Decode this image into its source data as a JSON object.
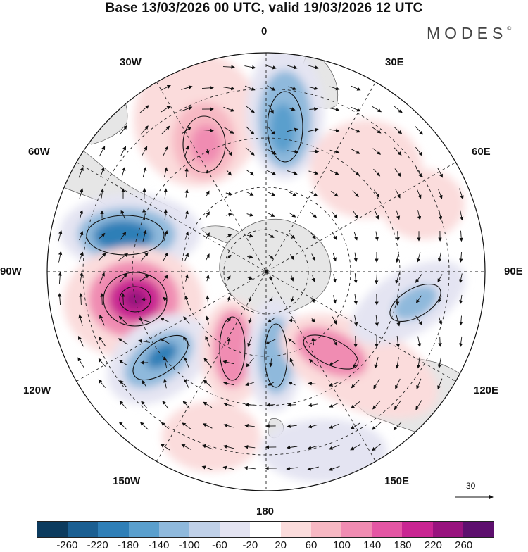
{
  "title": "Base 13/03/2026 00 UTC, valid 19/03/2026 12 UTC",
  "logo": {
    "text": "MODES",
    "mark": "©"
  },
  "map": {
    "projection": "south-polar-stereographic",
    "longitude_labels": {
      "0": "0",
      "30E": "30E",
      "60E": "60E",
      "90E": "90E",
      "120E": "120E",
      "150E": "150E",
      "180": "180",
      "150W": "150W",
      "120W": "120W",
      "90W": "90W",
      "60W": "60W",
      "30W": "30W"
    },
    "reference_vector": {
      "label": "30",
      "icon": "arrow-right-icon"
    },
    "anomaly_centers": [
      {
        "name": "negative-center-atlantic",
        "value": -140
      },
      {
        "name": "negative-center-drake",
        "value": -160
      },
      {
        "name": "positive-center-pacific",
        "value": 240
      },
      {
        "name": "negative-center-pacific-sw",
        "value": -160
      },
      {
        "name": "positive-center-ross",
        "value": 160
      },
      {
        "name": "positive-center-tasman",
        "value": 140
      }
    ]
  },
  "colorbar": {
    "colors": [
      "#0c3b5e",
      "#1b5f92",
      "#2f7fb7",
      "#5a9fcd",
      "#8fb9dc",
      "#bfd0e8",
      "#e4e4f2",
      "#ffffff",
      "#fbdcdc",
      "#f7b8c3",
      "#f08cb2",
      "#e456a4",
      "#c92592",
      "#98137e",
      "#5d0f6e"
    ],
    "tick_labels": [
      "-260",
      "-220",
      "-180",
      "-140",
      "-100",
      "-60",
      "-20",
      "20",
      "60",
      "100",
      "140",
      "180",
      "220",
      "260"
    ]
  }
}
